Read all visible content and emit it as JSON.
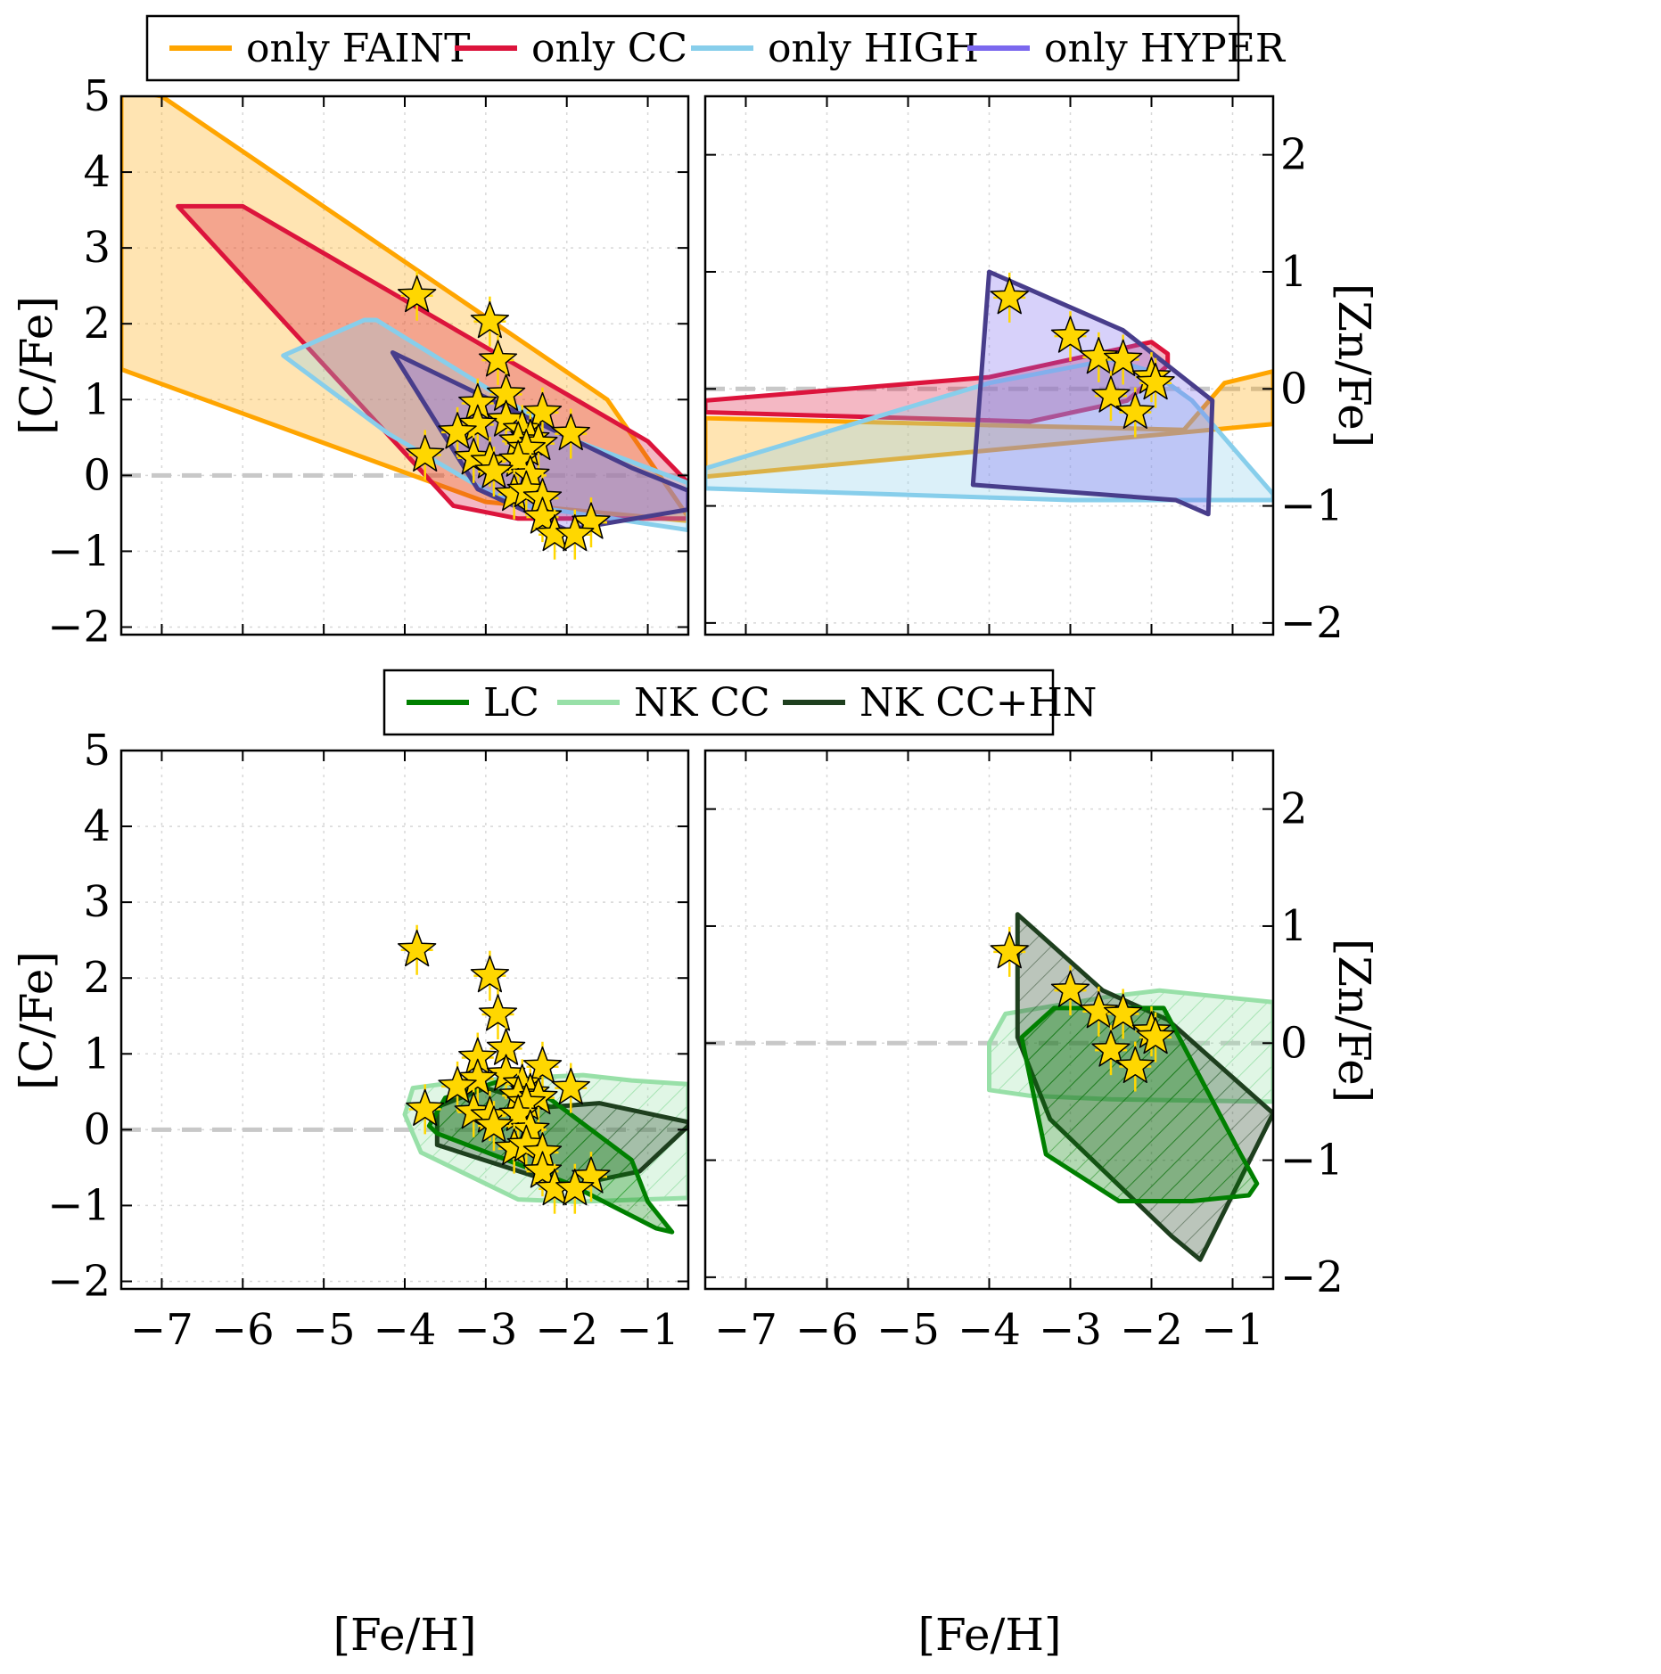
{
  "chart_data": {
    "type": "scatter",
    "colors": {
      "faint": "#FFA500",
      "cc": "#DC143C",
      "high": "#87CEEB",
      "hyper": "#7B68EE",
      "hyper_edge": "#483D8B",
      "lc": "#008000",
      "nkcc": "#98E0A8",
      "nkcchn": "#1E3F1E",
      "star": "#FFD700",
      "zero_line": "#C8C8C8"
    },
    "top_legend": [
      {
        "label": "only FAINT",
        "color_key": "faint"
      },
      {
        "label": "only CC",
        "color_key": "cc"
      },
      {
        "label": "only HIGH",
        "color_key": "high"
      },
      {
        "label": "only HYPER",
        "color_key": "hyper"
      }
    ],
    "bottom_legend": [
      {
        "label": "LC",
        "color_key": "lc"
      },
      {
        "label": "NK CC",
        "color_key": "nkcc"
      },
      {
        "label": "NK CC+HN",
        "color_key": "nkcchn"
      }
    ],
    "xlabel": "[Fe/H]",
    "ylabel_left": "[C/Fe]",
    "ylabel_right": "[Zn/Fe]",
    "xlim": [
      -7.5,
      -0.5
    ],
    "ylim_left": [
      -2.1,
      5
    ],
    "ylim_right": [
      -2.1,
      2.5
    ],
    "x_ticks": [
      -7,
      -6,
      -5,
      -4,
      -3,
      -2,
      -1
    ],
    "x_tick_labels": [
      "−7",
      "−6",
      "−5",
      "−4",
      "−3",
      "−2",
      "−1"
    ],
    "y_ticks_left": [
      5,
      4,
      3,
      2,
      1,
      0,
      -1,
      -2
    ],
    "y_tick_labels_left": [
      "5",
      "4",
      "3",
      "2",
      "1",
      "0",
      "−1",
      "−2"
    ],
    "y_ticks_right": [
      2,
      1,
      0,
      -1,
      -2
    ],
    "y_tick_labels_right": [
      "2",
      "1",
      "0",
      "−1",
      "−2"
    ],
    "stars_cfe": [
      [
        -3.85,
        2.37
      ],
      [
        -2.95,
        2.03
      ],
      [
        -2.85,
        1.52
      ],
      [
        -2.75,
        1.07
      ],
      [
        -3.1,
        0.95
      ],
      [
        -2.75,
        0.73
      ],
      [
        -3.1,
        0.67
      ],
      [
        -3.35,
        0.57
      ],
      [
        -2.3,
        0.83
      ],
      [
        -1.95,
        0.55
      ],
      [
        -2.55,
        0.6
      ],
      [
        -2.45,
        0.48
      ],
      [
        -2.6,
        0.45
      ],
      [
        -2.35,
        0.42
      ],
      [
        -2.5,
        0.35
      ],
      [
        -3.75,
        0.27
      ],
      [
        -3.15,
        0.23
      ],
      [
        -2.95,
        0.18
      ],
      [
        -2.6,
        0.2
      ],
      [
        -2.9,
        0.05
      ],
      [
        -2.45,
        0.0
      ],
      [
        -2.65,
        -0.25
      ],
      [
        -2.5,
        -0.2
      ],
      [
        -2.3,
        -0.3
      ],
      [
        -2.3,
        -0.55
      ],
      [
        -1.7,
        -0.62
      ],
      [
        -2.15,
        -0.78
      ],
      [
        -1.9,
        -0.78
      ]
    ],
    "stars_znfe": [
      [
        -3.75,
        0.78
      ],
      [
        -3.0,
        0.45
      ],
      [
        -2.65,
        0.27
      ],
      [
        -2.35,
        0.25
      ],
      [
        -2.0,
        0.1
      ],
      [
        -1.95,
        0.05
      ],
      [
        -2.5,
        -0.06
      ],
      [
        -2.2,
        -0.2
      ]
    ],
    "top_left_regions": {
      "faint": [
        [
          -7.5,
          5.1
        ],
        [
          -7.0,
          5.0
        ],
        [
          -1.5,
          1.0
        ],
        [
          -0.5,
          -0.55
        ],
        [
          -0.5,
          -0.6
        ],
        [
          -3.0,
          -0.35
        ],
        [
          -7.5,
          1.4
        ]
      ],
      "cc": [
        [
          -6.8,
          3.55
        ],
        [
          -6.0,
          3.55
        ],
        [
          -1.0,
          0.45
        ],
        [
          -0.5,
          -0.1
        ],
        [
          -0.5,
          -0.57
        ],
        [
          -2.6,
          -0.57
        ],
        [
          -3.4,
          -0.4
        ]
      ],
      "high": [
        [
          -5.5,
          1.58
        ],
        [
          -4.5,
          2.05
        ],
        [
          -4.35,
          2.05
        ],
        [
          -2.0,
          0.5
        ],
        [
          -1.5,
          0.3
        ],
        [
          -0.5,
          -0.1
        ],
        [
          -0.5,
          -0.72
        ],
        [
          -2.5,
          -0.4
        ],
        [
          -3.0,
          -0.2
        ],
        [
          -4.2,
          0.55
        ]
      ],
      "hyper": [
        [
          -4.15,
          1.62
        ],
        [
          -1.2,
          0.1
        ],
        [
          -0.5,
          -0.2
        ],
        [
          -0.5,
          -0.45
        ],
        [
          -2.0,
          -0.72
        ],
        [
          -3.1,
          -0.18
        ]
      ]
    },
    "top_right_regions": {
      "faint": [
        [
          -7.5,
          -0.25
        ],
        [
          -1.6,
          -0.35
        ],
        [
          -1.1,
          0.05
        ],
        [
          -0.5,
          0.15
        ],
        [
          -0.5,
          -0.3
        ],
        [
          -7.5,
          -0.75
        ]
      ],
      "cc": [
        [
          -7.5,
          -0.2
        ],
        [
          -3.5,
          -0.28
        ],
        [
          -2.3,
          -0.1
        ],
        [
          -1.8,
          0.2
        ],
        [
          -1.8,
          0.3
        ],
        [
          -2.0,
          0.4
        ],
        [
          -4.0,
          0.1
        ],
        [
          -7.5,
          -0.1
        ]
      ],
      "high": [
        [
          -7.5,
          -0.68
        ],
        [
          -4.0,
          0.05
        ],
        [
          -2.5,
          0.25
        ],
        [
          -2.0,
          0.15
        ],
        [
          -1.5,
          -0.1
        ],
        [
          -0.5,
          -0.9
        ],
        [
          -0.5,
          -0.95
        ],
        [
          -3.0,
          -0.95
        ],
        [
          -7.5,
          -0.85
        ]
      ],
      "hyper": [
        [
          -4.0,
          1.0
        ],
        [
          -2.35,
          0.5
        ],
        [
          -1.25,
          -0.1
        ],
        [
          -1.3,
          -1.07
        ],
        [
          -1.7,
          -0.95
        ],
        [
          -4.2,
          -0.82
        ]
      ]
    },
    "bottom_left_regions": {
      "nkcc": [
        [
          -3.9,
          0.55
        ],
        [
          -3.2,
          0.65
        ],
        [
          -1.8,
          0.72
        ],
        [
          -1.2,
          0.65
        ],
        [
          -0.5,
          0.6
        ],
        [
          -0.5,
          -0.9
        ],
        [
          -1.9,
          -0.95
        ],
        [
          -2.6,
          -0.92
        ],
        [
          -3.8,
          -0.3
        ],
        [
          -4.0,
          0.2
        ]
      ],
      "nkcchn": [
        [
          -3.6,
          0.3
        ],
        [
          -3.0,
          0.55
        ],
        [
          -2.2,
          0.3
        ],
        [
          -1.6,
          0.35
        ],
        [
          -0.5,
          0.1
        ],
        [
          -0.5,
          0.05
        ],
        [
          -1.1,
          -0.55
        ],
        [
          -2.0,
          -0.75
        ],
        [
          -3.6,
          -0.2
        ]
      ],
      "lc": [
        [
          -3.7,
          0.05
        ],
        [
          -3.5,
          0.42
        ],
        [
          -2.8,
          0.65
        ],
        [
          -2.5,
          0.55
        ],
        [
          -2.2,
          0.4
        ],
        [
          -1.2,
          -0.4
        ],
        [
          -1.0,
          -0.95
        ],
        [
          -0.7,
          -1.35
        ],
        [
          -0.9,
          -1.3
        ],
        [
          -2.0,
          -0.7
        ],
        [
          -3.6,
          -0.05
        ]
      ]
    },
    "bottom_right_regions": {
      "nkcc": [
        [
          -4.0,
          0.0
        ],
        [
          -3.8,
          0.25
        ],
        [
          -2.5,
          0.4
        ],
        [
          -1.9,
          0.45
        ],
        [
          -0.5,
          0.35
        ],
        [
          -0.5,
          -0.5
        ],
        [
          -2.5,
          -0.48
        ],
        [
          -3.5,
          -0.45
        ],
        [
          -4.0,
          -0.4
        ]
      ],
      "nkcchn": [
        [
          -3.65,
          1.1
        ],
        [
          -2.6,
          0.45
        ],
        [
          -1.8,
          0.2
        ],
        [
          -0.5,
          -0.6
        ],
        [
          -1.4,
          -1.85
        ],
        [
          -1.75,
          -1.65
        ],
        [
          -3.25,
          -0.65
        ],
        [
          -3.65,
          0.05
        ]
      ],
      "lc": [
        [
          -3.6,
          0.05
        ],
        [
          -3.2,
          0.3
        ],
        [
          -1.85,
          0.3
        ],
        [
          -0.9,
          -0.95
        ],
        [
          -0.7,
          -1.2
        ],
        [
          -0.8,
          -1.3
        ],
        [
          -1.5,
          -1.35
        ],
        [
          -2.4,
          -1.35
        ],
        [
          -3.3,
          -0.95
        ]
      ]
    }
  }
}
